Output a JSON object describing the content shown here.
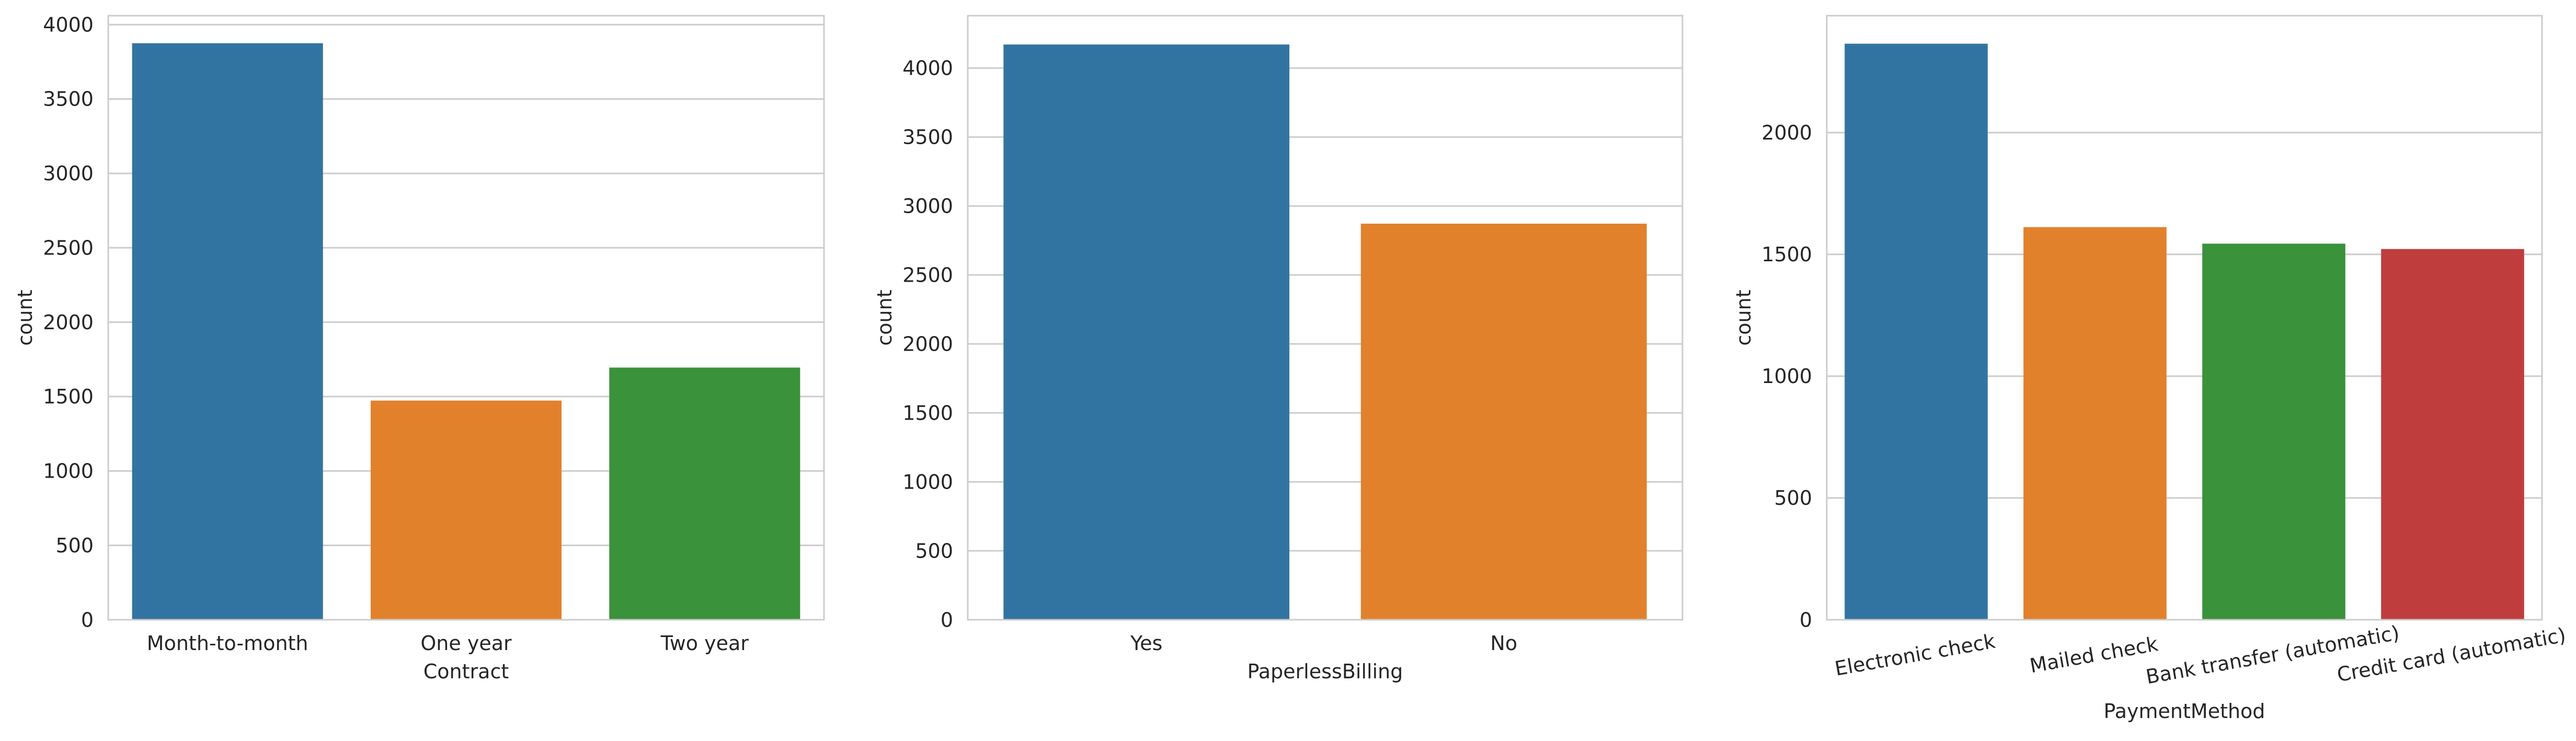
{
  "chart_data": [
    {
      "type": "bar",
      "xlabel": "Contract",
      "ylabel": "count",
      "categories": [
        "Month-to-month",
        "One year",
        "Two year"
      ],
      "values": [
        3875,
        1473,
        1695
      ],
      "colors": [
        "#3274a1",
        "#e1812c",
        "#3a923a"
      ],
      "ylim": [
        0,
        4060
      ],
      "yticks": [
        0,
        500,
        1000,
        1500,
        2000,
        2500,
        3000,
        3500,
        4000
      ],
      "ytick_labels": [
        "0",
        "500",
        "1000",
        "1500",
        "2000",
        "2500",
        "3000",
        "3500",
        "4000"
      ],
      "grid": true,
      "xtick_rotation": 0
    },
    {
      "type": "bar",
      "xlabel": "PaperlessBilling",
      "ylabel": "count",
      "categories": [
        "Yes",
        "No"
      ],
      "values": [
        4171,
        2872
      ],
      "colors": [
        "#3274a1",
        "#e1812c"
      ],
      "ylim": [
        0,
        4380
      ],
      "yticks": [
        0,
        500,
        1000,
        1500,
        2000,
        2500,
        3000,
        3500,
        4000
      ],
      "ytick_labels": [
        "0",
        "500",
        "1000",
        "1500",
        "2000",
        "2500",
        "3000",
        "3500",
        "4000"
      ],
      "grid": true,
      "xtick_rotation": 0
    },
    {
      "type": "bar",
      "xlabel": "PaymentMethod",
      "ylabel": "count",
      "categories": [
        "Electronic check",
        "Mailed check",
        "Bank transfer (automatic)",
        "Credit card (automatic)"
      ],
      "values": [
        2365,
        1612,
        1544,
        1522
      ],
      "colors": [
        "#3274a1",
        "#e1812c",
        "#3a923a",
        "#c03d3e"
      ],
      "ylim": [
        0,
        2480
      ],
      "yticks": [
        0,
        500,
        1000,
        1500,
        2000
      ],
      "ytick_labels": [
        "0",
        "500",
        "1000",
        "1500",
        "2000"
      ],
      "grid": true,
      "xtick_rotation": -10
    }
  ]
}
